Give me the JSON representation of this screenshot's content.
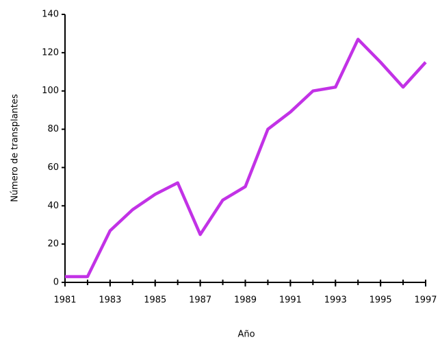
{
  "chart_data": {
    "type": "line",
    "x_label": "Año",
    "y_label": "Número de transplantes",
    "x": [
      1981,
      1982,
      1983,
      1984,
      1985,
      1986,
      1987,
      1988,
      1989,
      1990,
      1991,
      1992,
      1993,
      1994,
      1995,
      1996,
      1997
    ],
    "series": [
      {
        "name": "Transplantes",
        "color": "#c232e6",
        "values": [
          3,
          3,
          27,
          38,
          46,
          52,
          25,
          43,
          50,
          80,
          89,
          100,
          102,
          127,
          115,
          102,
          115
        ]
      }
    ],
    "xlim": [
      1981,
      1997
    ],
    "xticks": [
      1981,
      1983,
      1985,
      1987,
      1989,
      1991,
      1993,
      1995,
      1997
    ],
    "ylim": [
      0,
      140
    ],
    "yticks": [
      0,
      20,
      40,
      60,
      80,
      100,
      120,
      140
    ],
    "grid": false
  }
}
